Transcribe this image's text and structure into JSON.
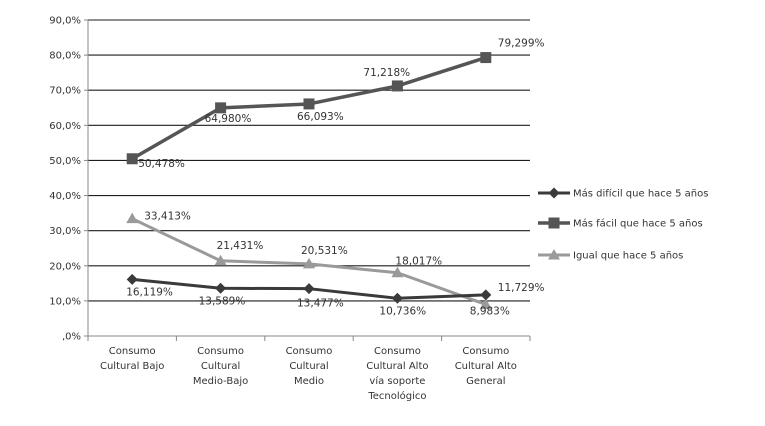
{
  "chart_data": {
    "type": "line",
    "categories": [
      [
        "Consumo",
        "Cultural Bajo"
      ],
      [
        "Consumo",
        "Cultural",
        "Medio-Bajo"
      ],
      [
        "Consumo",
        "Cultural",
        "Medio"
      ],
      [
        "Consumo",
        "Cultural Alto",
        "vía soporte",
        "Tecnológico"
      ],
      [
        "Consumo",
        "Cultural Alto",
        "General"
      ]
    ],
    "ylim": [
      0,
      90
    ],
    "yticks": [
      0,
      10,
      20,
      30,
      40,
      50,
      60,
      70,
      80,
      90
    ],
    "ytick_labels": [
      ",0%",
      "10,0%",
      "20,0%",
      "30,0%",
      "40,0%",
      "50,0%",
      "60,0%",
      "70,0%",
      "80,0%",
      "90,0%"
    ],
    "grid": true,
    "legend_position": "right",
    "series": [
      {
        "name": "Más difícil que hace 5 años",
        "marker": "diamond",
        "color": "#3a3a3a",
        "values": [
          16.119,
          13.589,
          13.477,
          10.736,
          11.729
        ],
        "labels": [
          "16,119%",
          "13,589%",
          "13,477%",
          "10,736%",
          "11,729%"
        ]
      },
      {
        "name": "Más fácil que hace 5 años",
        "marker": "square",
        "color": "#555555",
        "values": [
          50.478,
          64.98,
          66.093,
          71.218,
          79.299
        ],
        "labels": [
          "50,478%",
          "64,980%",
          "66,093%",
          "71,218%",
          "79,299%"
        ]
      },
      {
        "name": "Igual que hace 5 años",
        "marker": "triangle",
        "color": "#9a9a9a",
        "values": [
          33.413,
          21.431,
          20.531,
          18.017,
          8.983
        ],
        "labels": [
          "33,413%",
          "21,431%",
          "20,531%",
          "18,017%",
          "8,983%"
        ]
      }
    ]
  }
}
